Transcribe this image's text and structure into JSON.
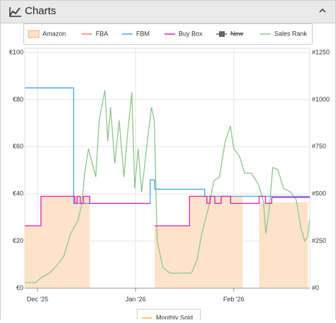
{
  "panel": {
    "title": "Charts"
  },
  "chart_data": {
    "type": "line",
    "xlim": [
      0,
      90
    ],
    "xticks": [
      {
        "value": 4,
        "label": "Dec '25"
      },
      {
        "value": 35,
        "label": "Jan '26"
      },
      {
        "value": 66,
        "label": "Feb '26"
      }
    ],
    "ylim": [
      0,
      100
    ],
    "yticks": [
      {
        "value": 0,
        "label": "€0"
      },
      {
        "value": 20,
        "label": "€20"
      },
      {
        "value": 40,
        "label": "€40"
      },
      {
        "value": 60,
        "label": "€60"
      },
      {
        "value": 80,
        "label": "€80"
      },
      {
        "value": 100,
        "label": "€100"
      }
    ],
    "y2lim": [
      0,
      1250
    ],
    "y2ticks": [
      {
        "value": 0,
        "label": "#0"
      },
      {
        "value": 250,
        "label": "#250"
      },
      {
        "value": 500,
        "label": "#500"
      },
      {
        "value": 750,
        "label": "#750"
      },
      {
        "value": 1000,
        "label": "#1000"
      },
      {
        "value": 1250,
        "label": "#1250"
      }
    ],
    "grid": true,
    "legend": "top",
    "series": [
      {
        "name": "Amazon",
        "color": "#f5b06a",
        "area": true,
        "x": [
          0,
          5.1,
          5.1,
          20.5,
          20.5,
          41,
          52,
          52,
          68.8,
          68.8,
          74,
          89.4
        ],
        "values": [
          26.5,
          26.5,
          39,
          39,
          null,
          26.5,
          26.5,
          39,
          39,
          null,
          36.5,
          36.5
        ]
      },
      {
        "name": "FBA",
        "color": "#f4846a",
        "x": [],
        "values": []
      },
      {
        "name": "FBM",
        "color": "#3ea8e6",
        "x": [
          0,
          15.4,
          15.4,
          39.6,
          39.6,
          41,
          41,
          56.8,
          56.8,
          90
        ],
        "values": [
          85,
          85,
          36,
          36,
          46,
          46,
          42,
          42,
          39,
          39
        ]
      },
      {
        "name": "Buy Box",
        "color": "#e21cb4",
        "x": [
          0,
          5.1,
          5.1,
          15.8,
          15.8,
          16.5,
          16.5,
          17.5,
          17.5,
          18.5,
          18.5,
          20.5,
          20.5,
          39.6,
          39.6,
          41,
          41,
          52,
          52,
          57.5,
          57.5,
          58.5,
          58.5,
          60,
          60,
          62,
          62,
          65,
          65,
          74,
          74,
          76,
          76,
          78,
          78,
          90
        ],
        "values": [
          26.5,
          26.5,
          39,
          39,
          36,
          36,
          39,
          39,
          36,
          36,
          39,
          39,
          36,
          36,
          null,
          26.5,
          26.5,
          26.5,
          39,
          39,
          36,
          36,
          39,
          39,
          36,
          36,
          39,
          39,
          36,
          36,
          39,
          39,
          36,
          36,
          38.5,
          38.5
        ]
      },
      {
        "name": "New",
        "color": "#666666",
        "hidden": true,
        "x": [],
        "values": []
      },
      {
        "name": "Sales Rank",
        "color": "#8cc68c",
        "axis": "y2",
        "x": [
          0,
          3.4,
          5.6,
          7.8,
          10.1,
          12.3,
          14.5,
          16.8,
          17.9,
          19.0,
          20.1,
          21.3,
          22.4,
          23.5,
          25.3,
          26.2,
          27.1,
          28.4,
          29.8,
          31.3,
          32.4,
          33.8,
          34.7,
          35.8,
          36.9,
          38.7,
          40.0,
          40.9,
          41.8,
          43.6,
          45.9,
          49.2,
          52.6,
          54.4,
          55.9,
          58.2,
          59.7,
          61.5,
          63.3,
          64.9,
          66.0,
          67.8,
          69.4,
          71.6,
          73.8,
          75.4,
          76.1,
          77.2,
          78.3,
          79.9,
          81.7,
          83.9,
          85.7,
          87.2,
          88.4,
          89.3,
          89.9
        ],
        "values": [
          30,
          30,
          60,
          80,
          120,
          170,
          290,
          360,
          440,
          620,
          740,
          660,
          590,
          890,
          1050,
          780,
          960,
          660,
          890,
          590,
          810,
          1040,
          530,
          740,
          510,
          780,
          960,
          890,
          250,
          110,
          80,
          80,
          80,
          150,
          290,
          440,
          570,
          590,
          780,
          860,
          740,
          700,
          610,
          610,
          550,
          460,
          290,
          420,
          640,
          630,
          530,
          510,
          470,
          320,
          250,
          270,
          360
        ]
      }
    ],
    "bottom_legend": {
      "name": "Monthly Sold",
      "color": "#f5b041"
    }
  }
}
